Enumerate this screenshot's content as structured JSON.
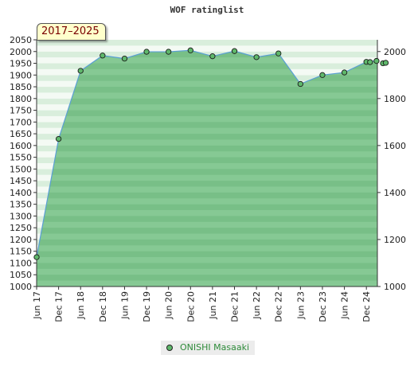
{
  "title": "WOF ratinglist",
  "period_label": "2017–2025",
  "legend": {
    "label": "ONISHI Masaaki",
    "marker_color": "#5fb86b"
  },
  "chart_data": {
    "type": "area",
    "title": "WOF ratinglist",
    "xlabel": "",
    "ylabel": "",
    "x_ticks": [
      "Jun 17",
      "Dec 17",
      "Jun 18",
      "Dec 18",
      "Jun 19",
      "Dec 19",
      "Jun 20",
      "Dec 20",
      "Jun 21",
      "Dec 21",
      "Jun 22",
      "Dec 22",
      "Jun 23",
      "Dec 23",
      "Jun 24",
      "Dec 24"
    ],
    "y_left_ticks": [
      1000,
      1050,
      1100,
      1150,
      1200,
      1250,
      1300,
      1350,
      1400,
      1450,
      1500,
      1550,
      1600,
      1650,
      1700,
      1750,
      1800,
      1850,
      1900,
      1950,
      2000,
      2050
    ],
    "y_right_ticks": [
      1000,
      1200,
      1400,
      1600,
      1800,
      2000
    ],
    "ylim": [
      1000,
      2050
    ],
    "xlim": [
      "2017-06",
      "2025-03"
    ],
    "colors": {
      "line": "#5a9fd4",
      "area": "#7cc38a",
      "marker": "#5fb86b"
    },
    "series": [
      {
        "name": "ONISHI Masaaki",
        "points": [
          {
            "x": "2017-06",
            "y": 1125
          },
          {
            "x": "2017-12",
            "y": 1628
          },
          {
            "x": "2018-06",
            "y": 1918
          },
          {
            "x": "2018-12",
            "y": 1983
          },
          {
            "x": "2019-06",
            "y": 1970
          },
          {
            "x": "2019-12",
            "y": 1999
          },
          {
            "x": "2020-06",
            "y": 1999
          },
          {
            "x": "2020-12",
            "y": 2005
          },
          {
            "x": "2021-06",
            "y": 1980
          },
          {
            "x": "2021-12",
            "y": 2002
          },
          {
            "x": "2022-06",
            "y": 1976
          },
          {
            "x": "2022-12",
            "y": 1992
          },
          {
            "x": "2023-06",
            "y": 1862
          },
          {
            "x": "2023-12",
            "y": 1900
          },
          {
            "x": "2024-06",
            "y": 1911
          },
          {
            "x": "2024-12",
            "y": 1956
          },
          {
            "x": "2025-01",
            "y": 1955
          },
          {
            "x": "2025-02",
            "y": 1960
          },
          {
            "x": "2025-03",
            "y": 1950
          },
          {
            "x": "2025-03",
            "y": 1952
          }
        ]
      }
    ]
  }
}
